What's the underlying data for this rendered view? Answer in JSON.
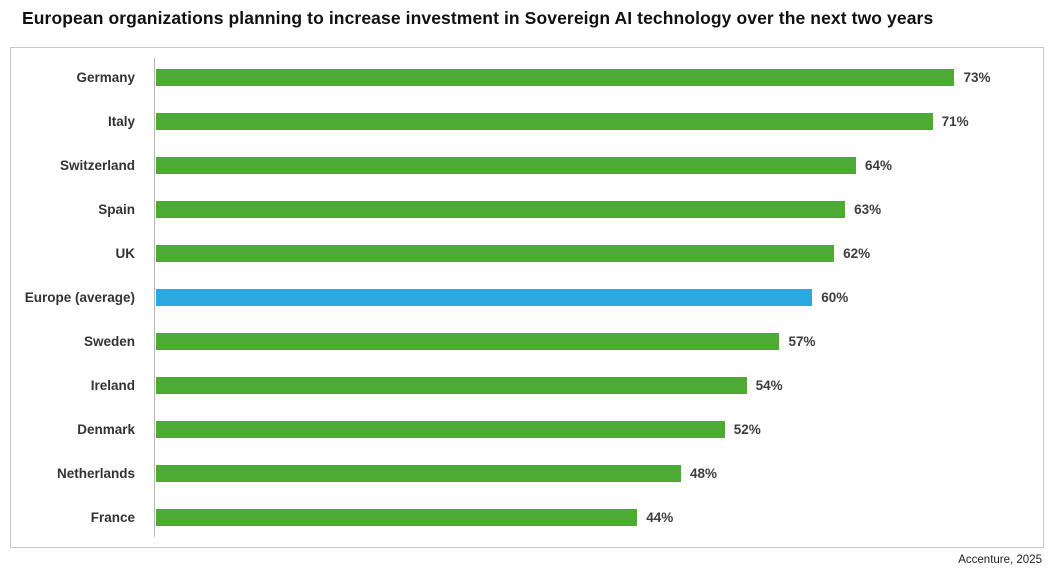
{
  "chart_data": {
    "type": "bar",
    "orientation": "horizontal",
    "title": "European organizations planning to increase investment in Sovereign AI technology over the next two years",
    "categories": [
      "Germany",
      "Italy",
      "Switzerland",
      "Spain",
      "UK",
      "Europe (average)",
      "Sweden",
      "Ireland",
      "Denmark",
      "Netherlands",
      "France"
    ],
    "values": [
      73,
      71,
      64,
      63,
      62,
      60,
      57,
      54,
      52,
      48,
      44
    ],
    "value_labels": [
      "73%",
      "71%",
      "64%",
      "63%",
      "62%",
      "60%",
      "57%",
      "54%",
      "52%",
      "48%",
      "44%"
    ],
    "xlim": [
      0,
      80
    ],
    "bar_color": "#4caa35",
    "highlight_index": 5,
    "highlight_color": "#29a9e0",
    "grid": false,
    "legend": false,
    "source": "Accenture, 2025"
  }
}
